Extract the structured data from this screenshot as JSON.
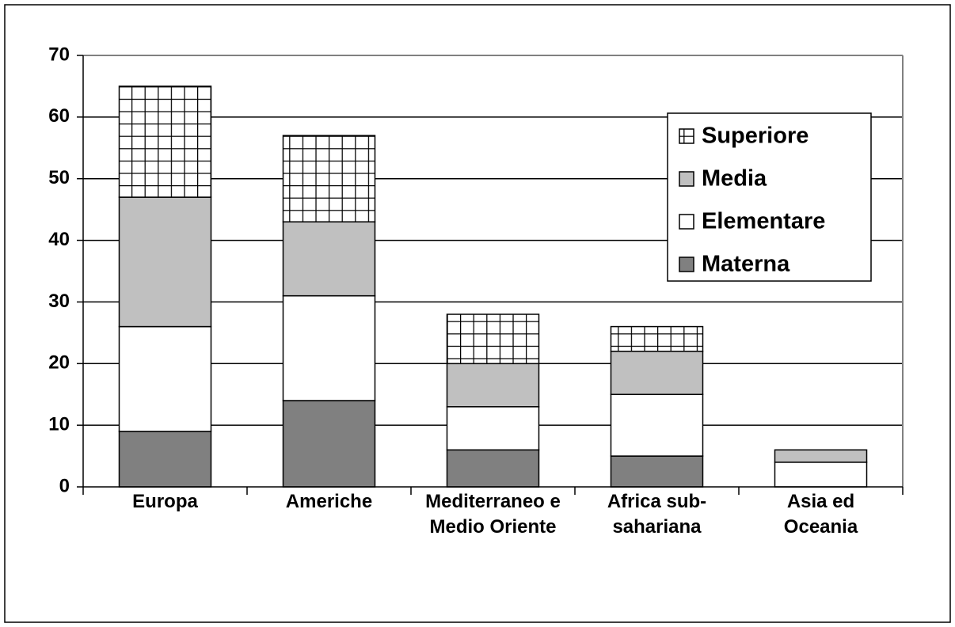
{
  "chart_data": {
    "type": "stacked_bar",
    "categories": [
      "Europa",
      "Americhe",
      "Mediterraneo e Medio Oriente",
      "Africa sub-sahariana",
      "Asia ed Oceania"
    ],
    "series": [
      {
        "name": "Materna",
        "color": "#808080",
        "values": [
          9,
          14,
          6,
          5,
          0
        ]
      },
      {
        "name": "Elementare",
        "color": "#ffffff",
        "values": [
          17,
          17,
          7,
          10,
          4
        ]
      },
      {
        "name": "Media",
        "color": "#c0c0c0",
        "values": [
          21,
          12,
          7,
          7,
          2
        ]
      },
      {
        "name": "Superiore",
        "color": "#ffffff",
        "pattern": "grid",
        "values": [
          18,
          14,
          8,
          4,
          0
        ]
      }
    ],
    "ylim": [
      0,
      70
    ],
    "yticks": [
      0,
      10,
      20,
      30,
      40,
      50,
      60,
      70
    ],
    "grid": true
  }
}
